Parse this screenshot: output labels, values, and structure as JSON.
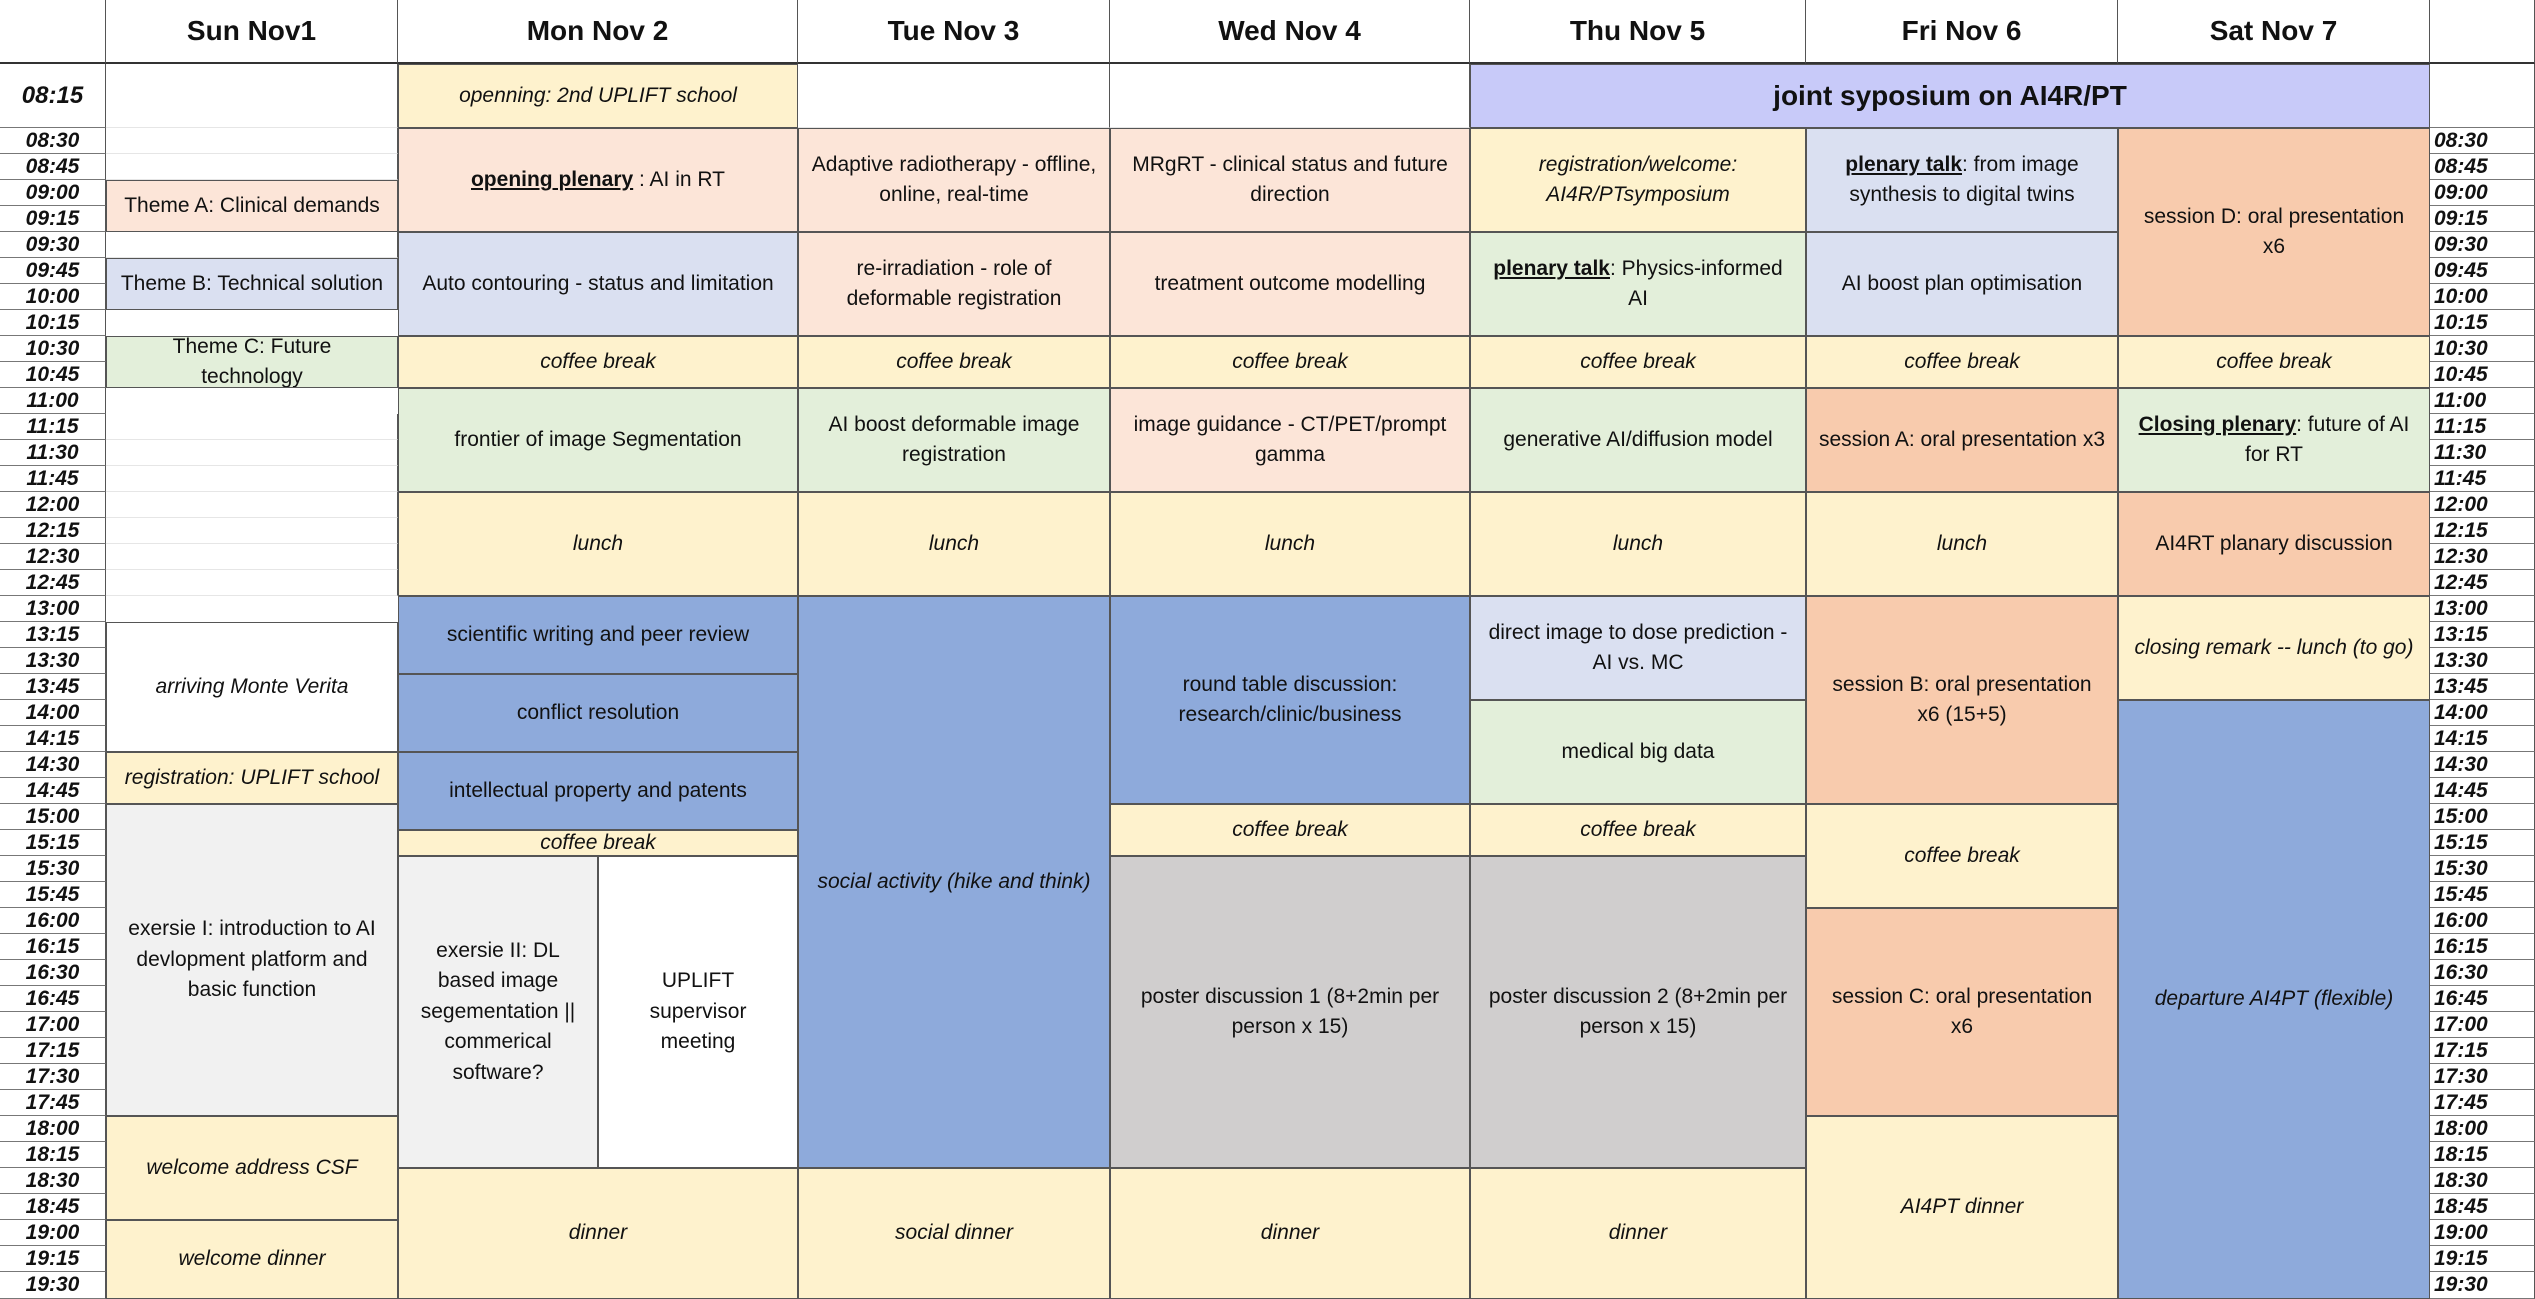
{
  "days": [
    "Sun Nov1",
    "Mon Nov 2",
    "Tue Nov 3",
    "Wed Nov 4",
    "Thu Nov 5",
    "Fri Nov 6",
    "Sat Nov 7"
  ],
  "first_time": "08:15",
  "times": [
    "08:30",
    "08:45",
    "09:00",
    "09:15",
    "09:30",
    "09:45",
    "10:00",
    "10:15",
    "10:30",
    "10:45",
    "11:00",
    "11:15",
    "11:30",
    "11:45",
    "12:00",
    "12:15",
    "12:30",
    "12:45",
    "13:00",
    "13:15",
    "13:30",
    "13:45",
    "14:00",
    "14:15",
    "14:30",
    "14:45",
    "15:00",
    "15:15",
    "15:30",
    "15:45",
    "16:00",
    "16:15",
    "16:30",
    "16:45",
    "17:00",
    "17:15",
    "17:30",
    "17:45",
    "18:00",
    "18:15",
    "18:30",
    "18:45",
    "19:00",
    "19:15",
    "19:30"
  ],
  "legend": {
    "theme_a": "Theme A: Clinical demands",
    "theme_b": "Theme B: Technical solution",
    "theme_c": "Theme C: Future technology",
    "colors": {
      "theme_a": "#fce5d8",
      "theme_b": "#dae0f1",
      "theme_c": "#e3efda"
    }
  },
  "sessions": {
    "sun": {
      "arriving": "arriving Monte Verita",
      "registration": "registration: UPLIFT school",
      "exersie1": "exersie I: introduction to AI devlopment platform and basic function",
      "welcome_address": "welcome address CSF",
      "welcome_dinner": "welcome dinner"
    },
    "mon": {
      "opening": "openning: 2nd UPLIFT school",
      "plenary_lead": "opening plenary",
      "plenary_rest": " :  AI in RT",
      "autocontour": "Auto contouring - status and limitation",
      "coffee1": "coffee break",
      "segmentation": "frontier of image Segmentation",
      "lunch": "lunch",
      "writing": "scientific writing and peer review",
      "conflict": "conflict resolution",
      "ip": "intellectual property and patents",
      "coffee2": "coffee break",
      "exersie2": "exersie II: DL based image segementation || commerical software?",
      "supervisor": "UPLIFT supervisor meeting",
      "dinner": "dinner"
    },
    "tue": {
      "adaptive": "Adaptive radiotherapy - offline, online, real-time",
      "reirradiation": "re-irradiation - role of deformable registration",
      "coffee": "coffee break",
      "registration": "AI boost deformable image registration",
      "lunch": "lunch",
      "social": "social activity (hike and think)",
      "dinner": "social dinner"
    },
    "wed": {
      "mrgrt": "MRgRT - clinical status and future direction",
      "outcome": "treatment outcome modelling",
      "coffee1": "coffee break",
      "guidance": "image guidance - CT/PET/prompt gamma",
      "lunch": "lunch",
      "roundtable": "round table discussion: research/clinic/business",
      "coffee2": "coffee break",
      "poster": "poster discussion 1 (8+2min per person x 15)",
      "dinner": "dinner"
    },
    "thu": {
      "regwelcome": "registration/welcome: AI4R/PTsymposium",
      "plenary_lead": "plenary talk",
      "plenary_rest": ": Physics-informed AI",
      "coffee1": "coffee break",
      "generative": "generative AI/diffusion model",
      "lunch": "lunch",
      "dose": "direct image to dose prediction - AI vs. MC",
      "bigdata": "medical big data",
      "coffee2": "coffee break",
      "poster": "poster discussion 2 (8+2min per person x 15)",
      "dinner": "dinner"
    },
    "fri": {
      "plenary_lead": "plenary talk",
      "plenary_rest": ": from image synthesis to digital twins",
      "planopt": "AI boost plan optimisation",
      "coffee1": "coffee break",
      "sessionA": "session A: oral presentation x3",
      "lunch": "lunch",
      "sessionB": "session B: oral presentation x6 (15+5)",
      "coffee2": "coffee break",
      "sessionC": "session C:  oral presentation x6",
      "dinner": "AI4PT dinner"
    },
    "sat": {
      "sessionD": "session D: oral presentation x6",
      "coffee": "coffee break",
      "closing_lead": "Closing plenary",
      "closing_rest": ": future of AI for RT",
      "discussion": "AI4RT planary discussion",
      "remark": "closing remark -- lunch (to go)",
      "departure": "departure AI4PT (flexible)"
    },
    "joint": "joint syposium on AI4R/PT"
  }
}
